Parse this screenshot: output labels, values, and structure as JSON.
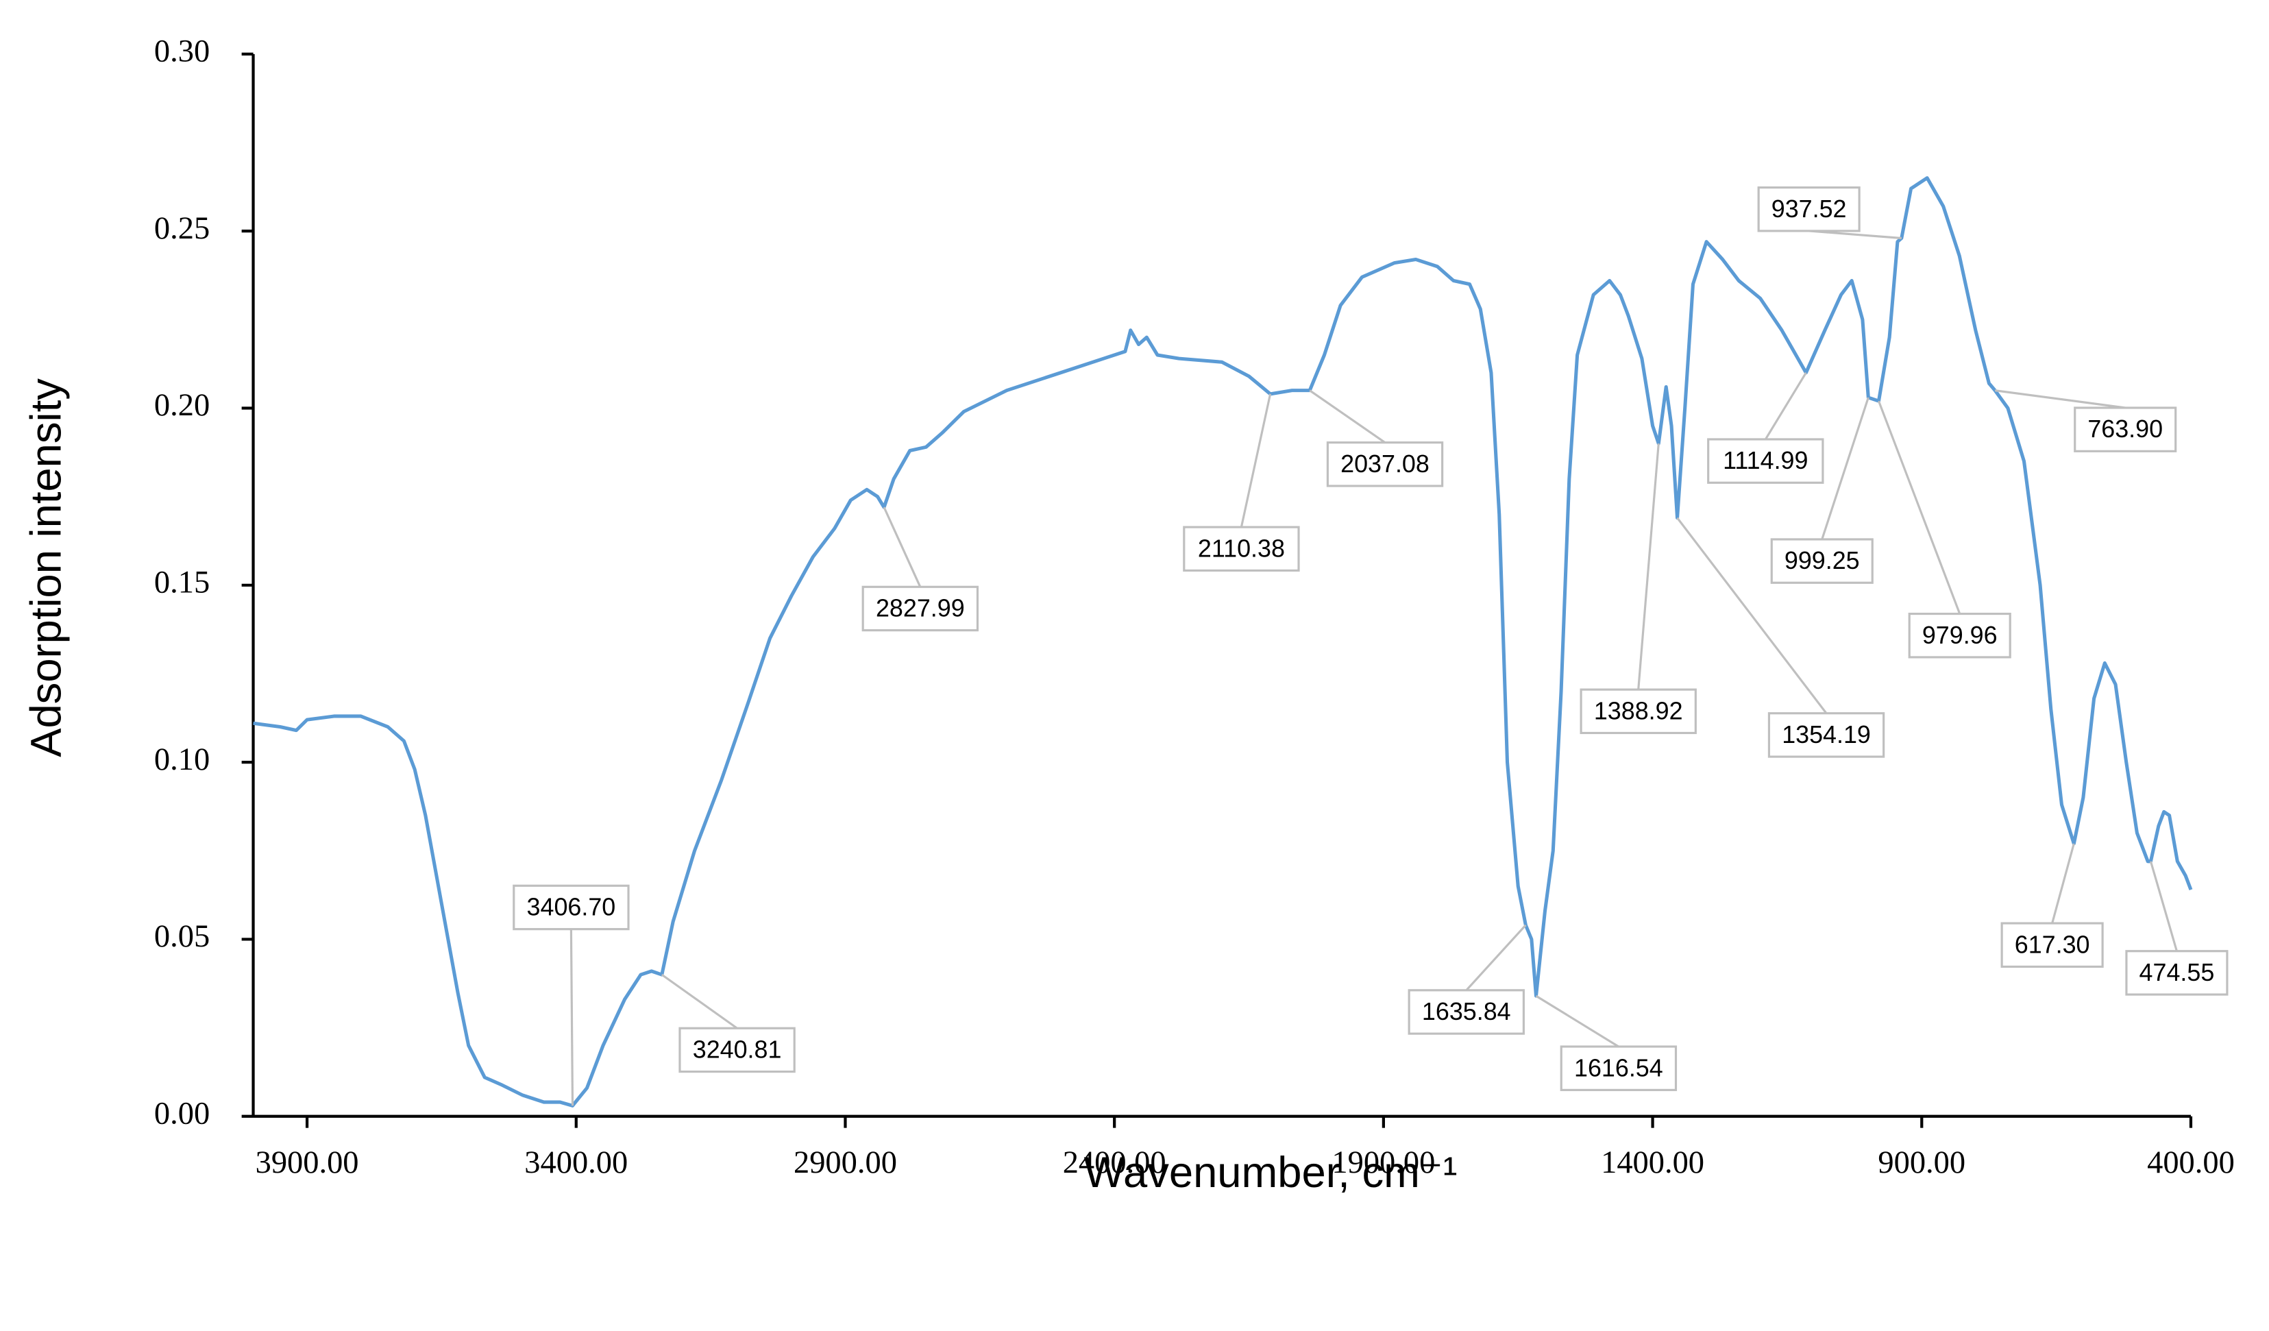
{
  "chart_data": {
    "type": "line",
    "x_label": "Wavenumber, cm⁻¹",
    "y_label": "Adsorption intensity",
    "xlim": [
      4000,
      400
    ],
    "ylim": [
      0,
      0.3
    ],
    "xticks": [
      {
        "value": 3900,
        "label": "3900.00"
      },
      {
        "value": 3400,
        "label": "3400.00"
      },
      {
        "value": 2900,
        "label": "2900.00"
      },
      {
        "value": 2400,
        "label": "2400.00"
      },
      {
        "value": 1900,
        "label": "1900.00"
      },
      {
        "value": 1400,
        "label": "1400.00"
      },
      {
        "value": 900,
        "label": "900.00"
      },
      {
        "value": 400,
        "label": "400.00"
      }
    ],
    "yticks": [
      {
        "value": 0,
        "label": "0.00"
      },
      0.05,
      {
        "value": 0.1,
        "label": "0.10"
      },
      0.15,
      {
        "value": 0.2,
        "label": "0.20"
      },
      0.25,
      {
        "value": 0.3,
        "label": "0.30"
      }
    ],
    "series": [
      {
        "color": "#5b9bd5",
        "x": [
          4000,
          3950,
          3920,
          3900,
          3850,
          3800,
          3750,
          3720,
          3700,
          3680,
          3650,
          3620,
          3600,
          3570,
          3540,
          3500,
          3460,
          3430,
          3406.7,
          3380,
          3350,
          3310,
          3280,
          3260,
          3240.81,
          3220,
          3180,
          3130,
          3080,
          3040,
          3000,
          2960,
          2920,
          2890,
          2860,
          2840,
          2827.99,
          2810,
          2780,
          2750,
          2720,
          2680,
          2600,
          2500,
          2420,
          2380,
          2370,
          2355,
          2340,
          2320,
          2280,
          2200,
          2150,
          2110.38,
          2070,
          2037.08,
          2010,
          1980,
          1940,
          1880,
          1840,
          1800,
          1770,
          1740,
          1720,
          1700,
          1685,
          1670,
          1650,
          1635.84,
          1625,
          1616.54,
          1600,
          1585,
          1570,
          1555,
          1540,
          1510,
          1480,
          1460,
          1445,
          1420,
          1400,
          1388.92,
          1375,
          1365,
          1354.19,
          1340,
          1325,
          1300,
          1270,
          1240,
          1200,
          1160,
          1114.99,
          1080,
          1050,
          1030,
          1010,
          999.25,
          979.96,
          960,
          945,
          937.52,
          920,
          890,
          860,
          830,
          800,
          775,
          763.9,
          740,
          710,
          680,
          660,
          640,
          617.3,
          600,
          580,
          560,
          540,
          520,
          500,
          480,
          474.55,
          460,
          450,
          440,
          425,
          410,
          400
        ],
        "values": [
          0.111,
          0.11,
          0.109,
          0.112,
          0.113,
          0.113,
          0.11,
          0.106,
          0.098,
          0.085,
          0.06,
          0.035,
          0.02,
          0.011,
          0.009,
          0.006,
          0.004,
          0.004,
          0.003,
          0.008,
          0.02,
          0.033,
          0.04,
          0.041,
          0.04,
          0.055,
          0.075,
          0.095,
          0.117,
          0.135,
          0.147,
          0.158,
          0.166,
          0.174,
          0.177,
          0.175,
          0.172,
          0.18,
          0.188,
          0.189,
          0.193,
          0.199,
          0.205,
          0.21,
          0.214,
          0.216,
          0.222,
          0.218,
          0.22,
          0.215,
          0.214,
          0.213,
          0.209,
          0.204,
          0.205,
          0.205,
          0.215,
          0.229,
          0.237,
          0.241,
          0.242,
          0.24,
          0.236,
          0.235,
          0.228,
          0.21,
          0.17,
          0.1,
          0.065,
          0.054,
          0.05,
          0.034,
          0.058,
          0.075,
          0.12,
          0.18,
          0.215,
          0.232,
          0.236,
          0.232,
          0.226,
          0.214,
          0.195,
          0.19,
          0.206,
          0.195,
          0.169,
          0.2,
          0.235,
          0.247,
          0.242,
          0.236,
          0.231,
          0.222,
          0.21,
          0.222,
          0.232,
          0.236,
          0.225,
          0.203,
          0.202,
          0.22,
          0.247,
          0.248,
          0.262,
          0.265,
          0.257,
          0.243,
          0.222,
          0.207,
          0.205,
          0.2,
          0.185,
          0.15,
          0.115,
          0.088,
          0.077,
          0.09,
          0.118,
          0.128,
          0.122,
          0.1,
          0.08,
          0.072,
          0.072,
          0.082,
          0.086,
          0.085,
          0.072,
          0.068,
          0.064
        ]
      }
    ],
    "annotations": [
      {
        "label": "3406.70",
        "x": 3406.7,
        "y": 0.003
      },
      {
        "label": "3240.81",
        "x": 3240.81,
        "y": 0.04
      },
      {
        "label": "2827.99",
        "x": 2827.99,
        "y": 0.172
      },
      {
        "label": "2110.38",
        "x": 2110.38,
        "y": 0.204
      },
      {
        "label": "2037.08",
        "x": 2037.08,
        "y": 0.205
      },
      {
        "label": "1635.84",
        "x": 1635.84,
        "y": 0.054
      },
      {
        "label": "1616.54",
        "x": 1616.54,
        "y": 0.034
      },
      {
        "label": "1388.92",
        "x": 1388.92,
        "y": 0.19
      },
      {
        "label": "1354.19",
        "x": 1354.19,
        "y": 0.169
      },
      {
        "label": "1114.99",
        "x": 1114.99,
        "y": 0.21
      },
      {
        "label": "999.25",
        "x": 999.25,
        "y": 0.203
      },
      {
        "label": "979.96",
        "x": 979.96,
        "y": 0.202
      },
      {
        "label": "937.52",
        "x": 937.52,
        "y": 0.248
      },
      {
        "label": "763.90",
        "x": 763.9,
        "y": 0.205
      },
      {
        "label": "617.30",
        "x": 617.3,
        "y": 0.077
      },
      {
        "label": "474.55",
        "x": 474.55,
        "y": 0.072
      }
    ]
  }
}
